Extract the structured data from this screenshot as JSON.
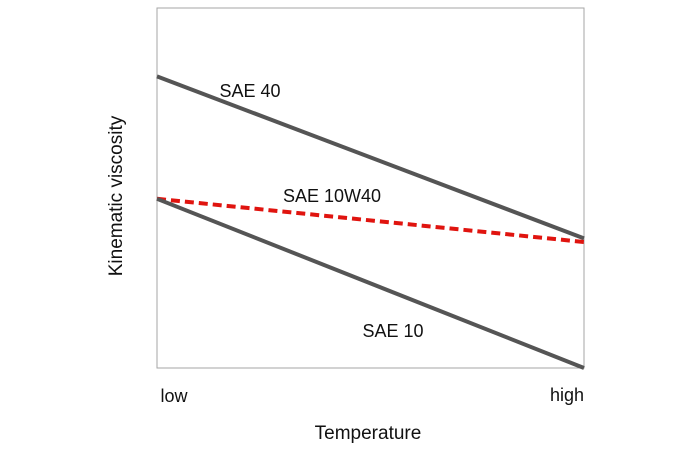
{
  "chart_data": {
    "type": "line",
    "xlabel": "Temperature",
    "ylabel": "Kinematic viscosity",
    "x_tick_labels": [
      "low",
      "high"
    ],
    "xlim": [
      0,
      1
    ],
    "ylim": [
      0,
      1
    ],
    "grid": false,
    "legend": "none",
    "series": [
      {
        "name": "SAE 40",
        "color": "#555555",
        "style": "solid",
        "x": [
          0,
          1
        ],
        "y": [
          0.81,
          0.36
        ]
      },
      {
        "name": "SAE 10W40",
        "color": "#e0140f",
        "style": "dashed",
        "x": [
          0,
          1
        ],
        "y": [
          0.47,
          0.35
        ]
      },
      {
        "name": "SAE 10",
        "color": "#555555",
        "style": "solid",
        "x": [
          0,
          1
        ],
        "y": [
          0.47,
          0.0
        ]
      }
    ]
  }
}
